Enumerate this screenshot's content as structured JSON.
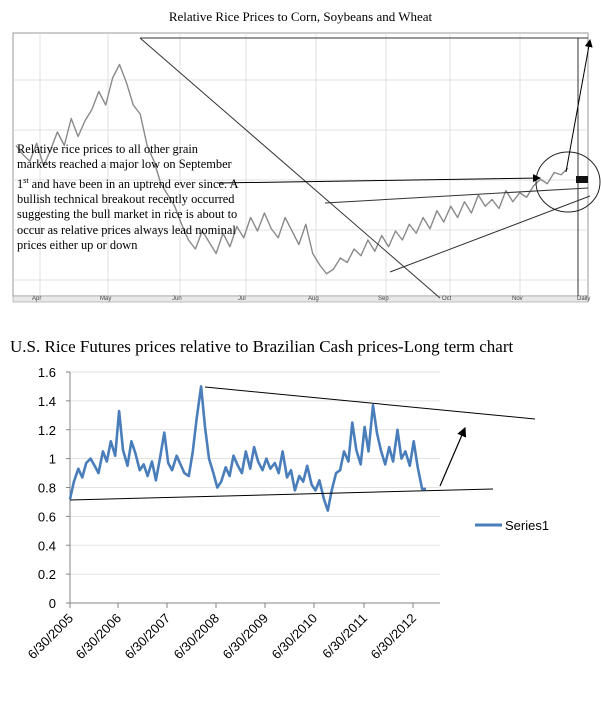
{
  "chart_data": [
    {
      "type": "line",
      "title": "Relative Rice Prices to Corn, Soybeans and Wheat",
      "x_tick_labels": [
        "Apr",
        "May",
        "Jun",
        "Jul",
        "Aug",
        "Sep",
        "Oct",
        "Nov",
        "Daily"
      ],
      "series": [
        {
          "x": [
            0,
            3,
            6,
            9,
            12,
            15,
            18,
            21,
            24,
            27,
            30,
            33,
            36,
            39,
            42,
            45,
            48,
            51,
            54,
            57,
            60,
            63,
            66,
            69,
            72,
            75,
            78,
            81,
            84,
            87,
            90,
            93,
            96,
            99,
            102,
            105,
            108,
            111,
            114,
            117,
            120,
            123,
            126,
            129,
            132,
            135,
            138,
            141,
            144,
            147,
            150,
            153,
            156,
            159,
            162,
            165,
            168,
            171,
            174,
            177,
            180,
            183,
            186,
            189,
            192,
            195,
            198,
            201,
            204,
            207,
            210,
            213,
            216,
            219,
            222,
            225,
            228,
            231,
            234,
            237,
            240
          ],
          "values": [
            0.62,
            0.58,
            0.55,
            0.63,
            0.53,
            0.6,
            0.68,
            0.62,
            0.74,
            0.66,
            0.73,
            0.78,
            0.86,
            0.8,
            0.92,
            0.98,
            0.9,
            0.8,
            0.76,
            0.62,
            0.55,
            0.45,
            0.4,
            0.35,
            0.27,
            0.2,
            0.16,
            0.24,
            0.19,
            0.14,
            0.23,
            0.17,
            0.26,
            0.21,
            0.3,
            0.24,
            0.32,
            0.25,
            0.21,
            0.3,
            0.24,
            0.18,
            0.27,
            0.14,
            0.09,
            0.05,
            0.07,
            0.12,
            0.1,
            0.16,
            0.13,
            0.2,
            0.15,
            0.22,
            0.17,
            0.24,
            0.2,
            0.27,
            0.23,
            0.3,
            0.25,
            0.33,
            0.28,
            0.35,
            0.3,
            0.37,
            0.32,
            0.4,
            0.35,
            0.38,
            0.34,
            0.42,
            0.37,
            0.41,
            0.39,
            0.44,
            0.47,
            0.45,
            0.5,
            0.49,
            0.52
          ]
        }
      ],
      "annotation": "Relative rice prices to all other grain markets reached a major low on September 1st and have been in an uptrend ever since. A bullish technical breakout recently occurred suggesting the bull market in rice is about to occur as relative prices always lead nominal prices either up or down",
      "annotation_prefix": "Relative rice prices to all other grain markets reached a major low on September 1",
      "annotation_sup": "st",
      "annotation_suffix": " and have been in an uptrend ever since. A bullish technical breakout recently occurred suggesting the bull market in rice is about to occur as relative prices always lead nominal prices either up or down",
      "grid": true,
      "colors": {
        "line": "#8a8a8a",
        "grid": "#d9d9d9",
        "trendline": "#333333"
      }
    },
    {
      "type": "line",
      "title": "U.S. Rice Futures prices relative to Brazilian Cash prices-Long term chart",
      "categories": [
        "6/30/2005",
        "6/30/2006",
        "6/30/2007",
        "6/30/2008",
        "6/30/2009",
        "6/30/2010",
        "6/30/2011",
        "6/30/2012"
      ],
      "y_ticks": [
        "0",
        "0.2",
        "0.4",
        "0.6",
        "0.8",
        "1",
        "1.2",
        "1.4",
        "1.6"
      ],
      "ylim": [
        0,
        1.6
      ],
      "legend_position": "right",
      "series": [
        {
          "name": "Series1",
          "x": [
            2005.5,
            2005.58,
            2005.67,
            2005.75,
            2005.83,
            2005.92,
            2006.0,
            2006.08,
            2006.17,
            2006.25,
            2006.33,
            2006.42,
            2006.5,
            2006.58,
            2006.67,
            2006.75,
            2006.83,
            2006.92,
            2007.0,
            2007.08,
            2007.17,
            2007.25,
            2007.33,
            2007.42,
            2007.5,
            2007.58,
            2007.67,
            2007.75,
            2007.83,
            2007.92,
            2008.0,
            2008.08,
            2008.17,
            2008.25,
            2008.33,
            2008.42,
            2008.5,
            2008.58,
            2008.67,
            2008.75,
            2008.83,
            2008.92,
            2009.0,
            2009.08,
            2009.17,
            2009.25,
            2009.33,
            2009.42,
            2009.5,
            2009.58,
            2009.67,
            2009.75,
            2009.83,
            2009.92,
            2010.0,
            2010.08,
            2010.17,
            2010.25,
            2010.33,
            2010.42,
            2010.5,
            2010.58,
            2010.67,
            2010.75,
            2010.83,
            2010.92,
            2011.0,
            2011.08,
            2011.17,
            2011.25,
            2011.33,
            2011.42,
            2011.5,
            2011.58,
            2011.67,
            2011.75,
            2011.83,
            2011.92,
            2012.0,
            2012.08,
            2012.17,
            2012.25,
            2012.33,
            2012.42,
            2012.5,
            2012.58,
            2012.67,
            2012.75
          ],
          "values": [
            0.72,
            0.84,
            0.93,
            0.87,
            0.97,
            1.0,
            0.95,
            0.9,
            1.05,
            0.98,
            1.12,
            1.02,
            1.33,
            1.06,
            0.95,
            1.12,
            1.04,
            0.92,
            0.96,
            0.88,
            0.98,
            0.85,
            1.0,
            1.18,
            0.97,
            0.92,
            1.02,
            0.96,
            0.9,
            0.88,
            1.05,
            1.28,
            1.5,
            1.22,
            1.0,
            0.9,
            0.8,
            0.84,
            0.94,
            0.88,
            1.02,
            0.95,
            0.9,
            1.05,
            0.93,
            1.08,
            0.98,
            0.92,
            1.0,
            0.93,
            0.97,
            0.9,
            1.05,
            0.87,
            0.92,
            0.78,
            0.88,
            0.84,
            0.95,
            0.82,
            0.78,
            0.85,
            0.72,
            0.64,
            0.78,
            0.9,
            0.92,
            1.05,
            0.98,
            1.25,
            1.06,
            0.96,
            1.22,
            1.05,
            1.37,
            1.18,
            1.06,
            0.96,
            1.08,
            0.98,
            1.2,
            1.0,
            1.05,
            0.95,
            1.12,
            0.94,
            0.79,
            0.79
          ]
        }
      ],
      "colors": {
        "series": "#4a7ebb",
        "axis": "#868686",
        "grid": "#d9d9d9",
        "trendline": "#000000"
      }
    }
  ]
}
